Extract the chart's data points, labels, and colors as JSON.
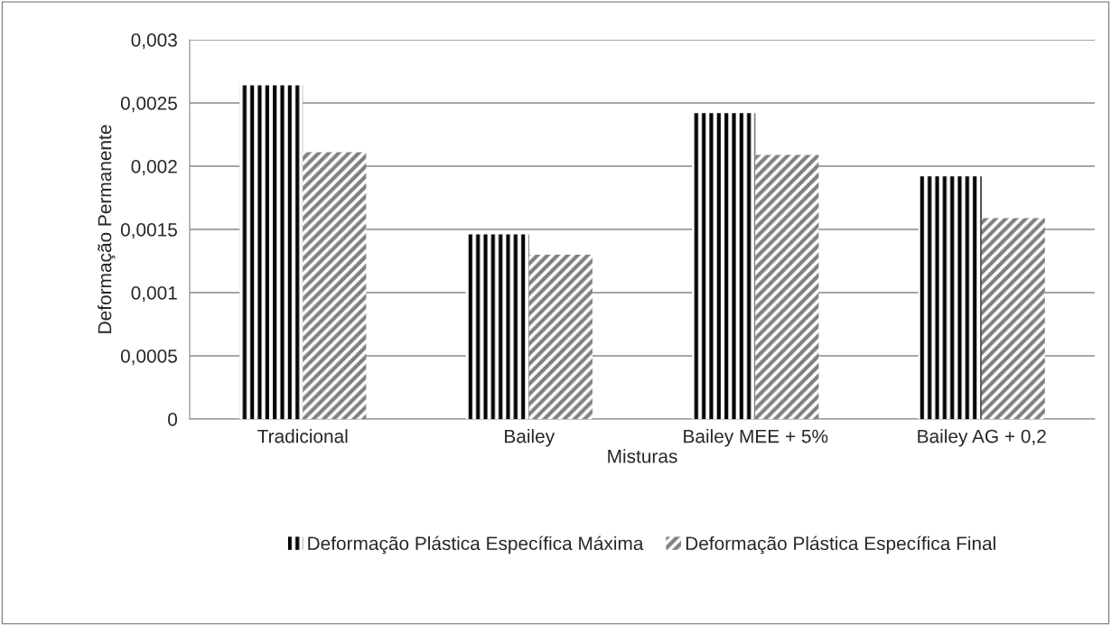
{
  "chart_data": {
    "type": "bar",
    "xlabel": "Misturas",
    "ylabel": "Deformação Permanente",
    "categories": [
      "Tradicional",
      "Bailey",
      "Bailey MEE + 5%",
      "Bailey AG + 0,2"
    ],
    "series": [
      {
        "name": "Deformação Plástica Específica Máxima",
        "color": "#000000",
        "values": [
          0.00264,
          0.00146,
          0.00242,
          0.00192
        ]
      },
      {
        "name": "Deformação Plástica Específica Final",
        "color": "#808080",
        "values": [
          0.00211,
          0.0013,
          0.00209,
          0.00159
        ]
      }
    ],
    "ylim": [
      0,
      0.003
    ],
    "yticks": [
      {
        "value": 0,
        "label": "0"
      },
      {
        "value": 0.0005,
        "label": "0,0005"
      },
      {
        "value": 0.001,
        "label": "0,001"
      },
      {
        "value": 0.0015,
        "label": "0,0015"
      },
      {
        "value": 0.002,
        "label": "0,002"
      },
      {
        "value": 0.0025,
        "label": "0,0025"
      },
      {
        "value": 0.003,
        "label": "0,003"
      }
    ],
    "grid": "y",
    "legend": "bottom"
  }
}
